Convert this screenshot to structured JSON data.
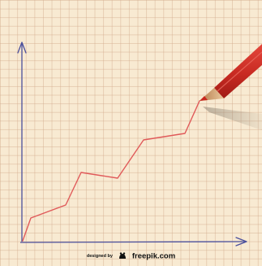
{
  "credit": {
    "prefix": "designed by",
    "brand": "freepik.com",
    "logo_icon": "freepik-logo-icon"
  },
  "colors": {
    "paper": "#f8ead2",
    "grid": "#d2aa8c",
    "axis": "#4a4f9c",
    "trend_line": "#e05a5a",
    "pencil": "#cc2a22"
  }
}
